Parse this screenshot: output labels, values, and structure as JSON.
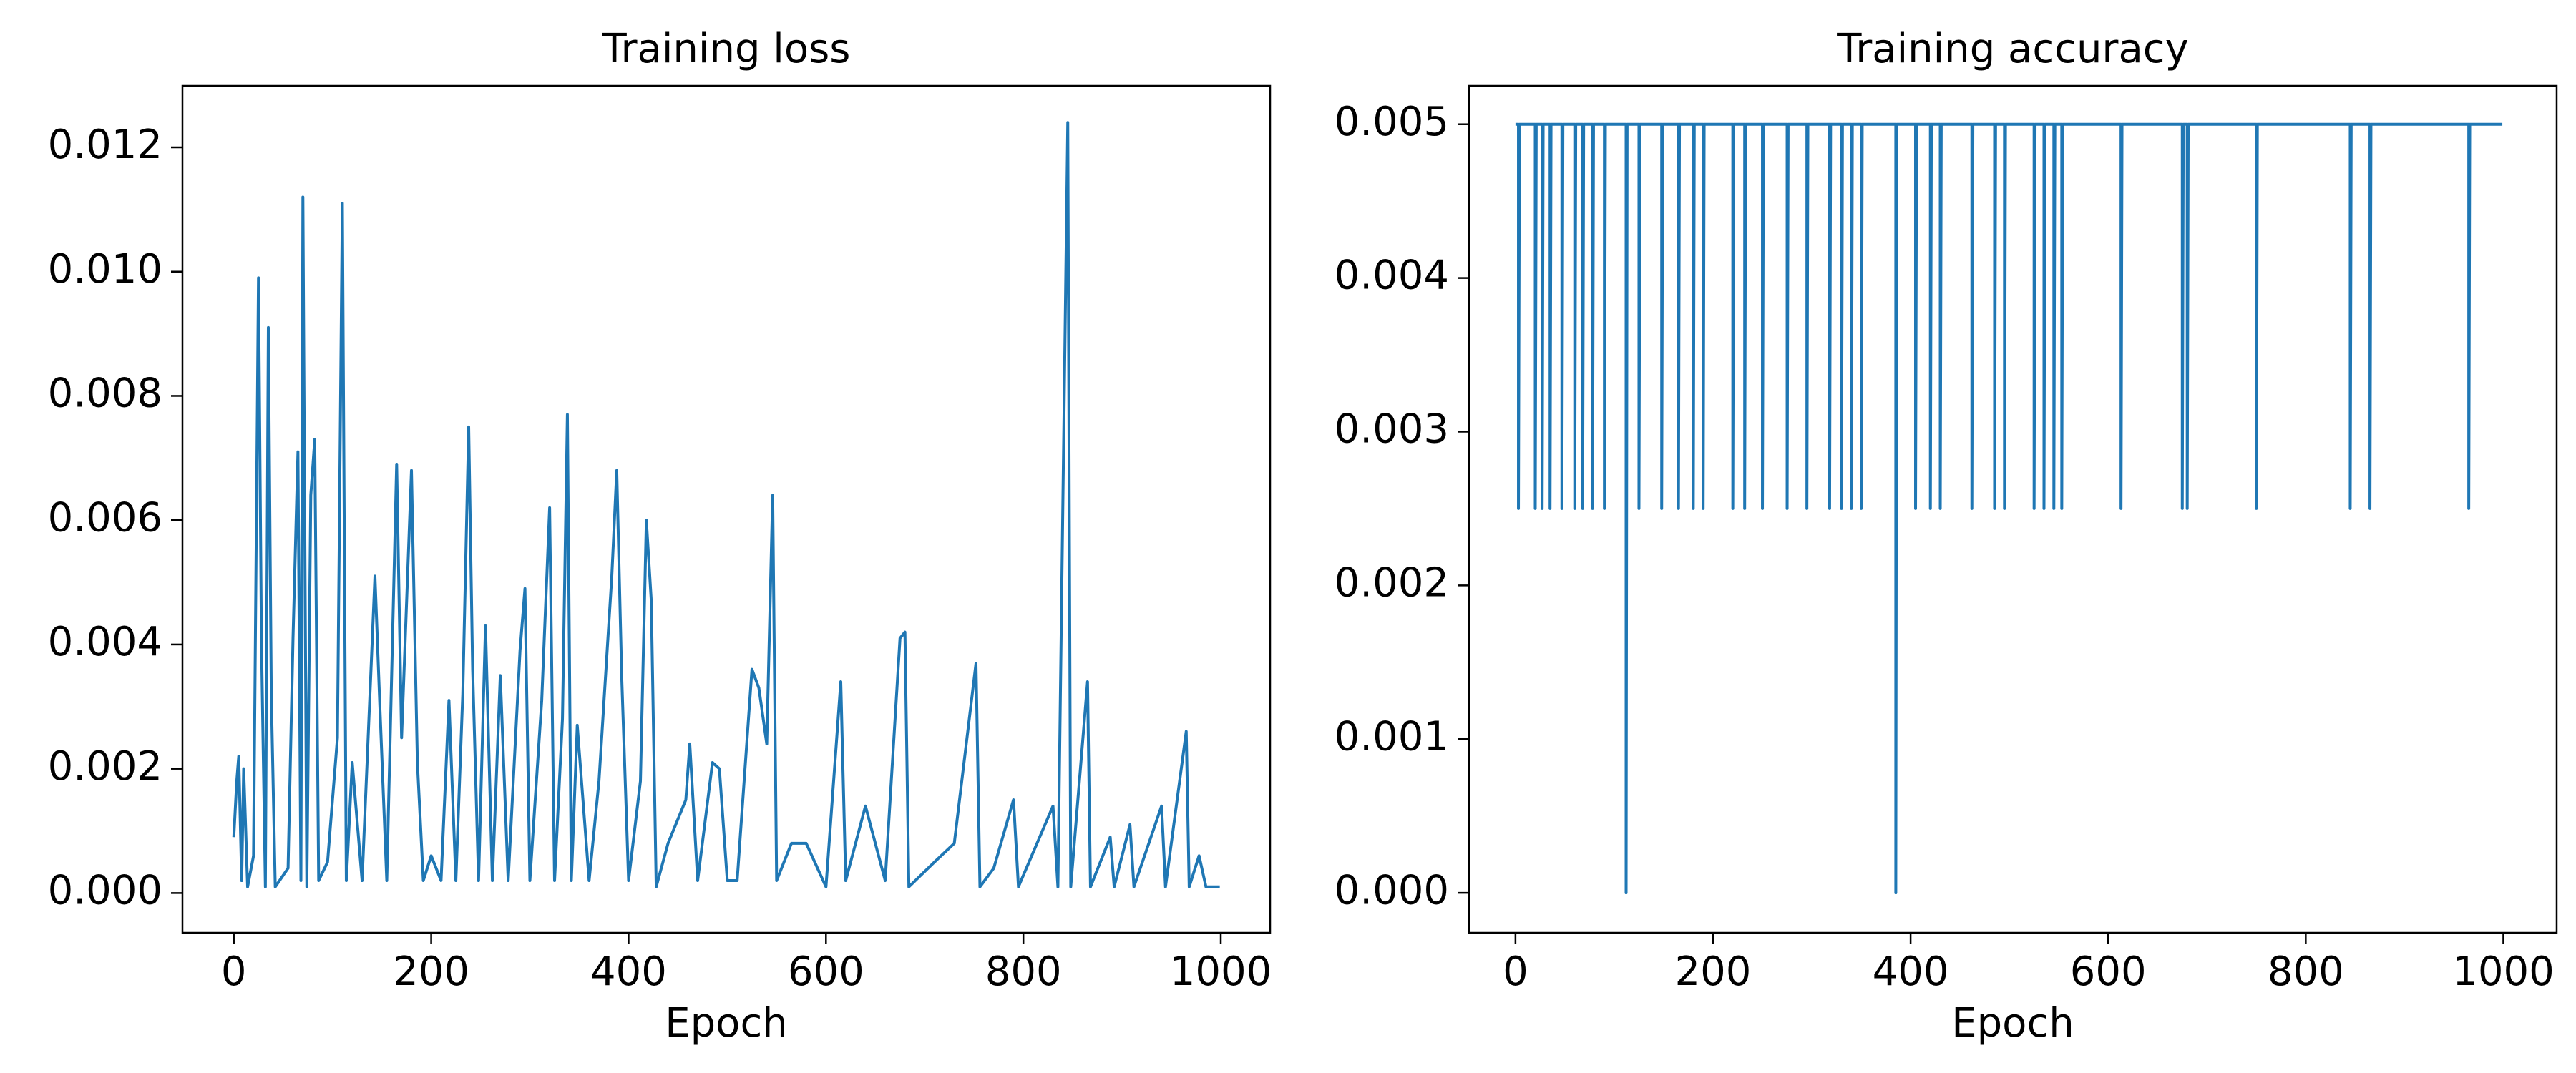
{
  "chart_data": [
    {
      "type": "line",
      "title": "Training loss",
      "xlabel": "Epoch",
      "color": "#1f77b4",
      "x": [
        0,
        3,
        5,
        8,
        10,
        14,
        20,
        25,
        28,
        32,
        35,
        38,
        42,
        55,
        60,
        65,
        68,
        70,
        74,
        78,
        82,
        86,
        95,
        105,
        110,
        114,
        120,
        130,
        143,
        148,
        155,
        165,
        170,
        180,
        186,
        192,
        200,
        210,
        218,
        225,
        232,
        238,
        242,
        248,
        255,
        262,
        270,
        278,
        290,
        295,
        300,
        312,
        320,
        325,
        333,
        338,
        342,
        348,
        360,
        370,
        383,
        388,
        393,
        400,
        412,
        418,
        423,
        428,
        440,
        458,
        462,
        470,
        485,
        492,
        500,
        510,
        525,
        532,
        540,
        546,
        550,
        565,
        580,
        600,
        615,
        620,
        640,
        660,
        675,
        680,
        684,
        710,
        730,
        752,
        756,
        770,
        790,
        795,
        830,
        835,
        845,
        848,
        865,
        868,
        888,
        892,
        908,
        912,
        940,
        944,
        965,
        968,
        978,
        985,
        999
      ],
      "values": [
        0.0009,
        0.0018,
        0.0022,
        0.0002,
        0.002,
        0.0001,
        0.0006,
        0.0099,
        0.0041,
        0.0001,
        0.0091,
        0.0032,
        0.0001,
        0.0004,
        0.0041,
        0.0071,
        0.0002,
        0.0112,
        0.0001,
        0.0064,
        0.0073,
        0.0002,
        0.0005,
        0.0025,
        0.0111,
        0.0002,
        0.0021,
        0.0002,
        0.0051,
        0.003,
        0.0002,
        0.0069,
        0.0025,
        0.0068,
        0.0021,
        0.0002,
        0.0006,
        0.0002,
        0.0031,
        0.0002,
        0.0032,
        0.0075,
        0.0036,
        0.0002,
        0.0043,
        0.0002,
        0.0035,
        0.0002,
        0.0039,
        0.0049,
        0.0002,
        0.0031,
        0.0062,
        0.0002,
        0.0028,
        0.0077,
        0.0002,
        0.0027,
        0.0002,
        0.0018,
        0.0051,
        0.0068,
        0.0035,
        0.0002,
        0.0018,
        0.006,
        0.0047,
        0.0001,
        0.0008,
        0.0015,
        0.0024,
        0.0002,
        0.0021,
        0.002,
        0.0002,
        0.0002,
        0.0036,
        0.0033,
        0.0024,
        0.0064,
        0.0002,
        0.0008,
        0.0008,
        0.0001,
        0.0034,
        0.0002,
        0.0014,
        0.0002,
        0.0041,
        0.0042,
        0.0001,
        0.0005,
        0.0008,
        0.0037,
        0.0001,
        0.0004,
        0.0015,
        0.0001,
        0.0014,
        0.0001,
        0.0124,
        0.0001,
        0.0034,
        0.0001,
        0.0009,
        0.0001,
        0.0011,
        0.0001,
        0.0014,
        0.0001,
        0.0026,
        0.0001,
        0.0006,
        0.0001,
        0.0001
      ],
      "xlim": [
        -52,
        1050
      ],
      "ylim": [
        -0.00064,
        0.01299
      ],
      "xticks": [
        0,
        200,
        400,
        600,
        800,
        1000
      ],
      "yticks": [
        {
          "value": 0,
          "label": "0.000"
        },
        {
          "value": 0.002,
          "label": "0.002"
        },
        {
          "value": 0.004,
          "label": "0.004"
        },
        {
          "value": 0.006,
          "label": "0.006"
        },
        {
          "value": 0.008,
          "label": "0.008"
        },
        {
          "value": 0.01,
          "label": "0.010"
        },
        {
          "value": 0.012,
          "label": "0.012"
        }
      ]
    },
    {
      "type": "line",
      "title": "Training accuracy",
      "xlabel": "Epoch",
      "color": "#1f77b4",
      "x": [
        0,
        3,
        3,
        4,
        20,
        20,
        21,
        27,
        27,
        28,
        35,
        35,
        36,
        47,
        47,
        48,
        60,
        60,
        61,
        68,
        68,
        69,
        78,
        78,
        79,
        90,
        90,
        91,
        112,
        112,
        113,
        125,
        125,
        126,
        148,
        148,
        149,
        165,
        165,
        166,
        180,
        180,
        181,
        190,
        190,
        191,
        220,
        220,
        221,
        232,
        232,
        233,
        250,
        250,
        251,
        275,
        275,
        276,
        295,
        295,
        296,
        318,
        318,
        319,
        330,
        330,
        331,
        340,
        340,
        341,
        350,
        350,
        351,
        385,
        385,
        386,
        405,
        405,
        406,
        420,
        420,
        421,
        430,
        430,
        431,
        462,
        462,
        463,
        485,
        485,
        486,
        495,
        495,
        496,
        525,
        525,
        526,
        535,
        535,
        536,
        545,
        545,
        546,
        553,
        553,
        554,
        613,
        613,
        614,
        675,
        675,
        676,
        680,
        680,
        681,
        750,
        750,
        751,
        845,
        845,
        846,
        865,
        865,
        866,
        965,
        965,
        966,
        999
      ],
      "values": [
        0.005,
        0.005,
        0.0025,
        0.005,
        0.005,
        0.0025,
        0.005,
        0.005,
        0.0025,
        0.005,
        0.005,
        0.0025,
        0.005,
        0.005,
        0.0025,
        0.005,
        0.005,
        0.0025,
        0.005,
        0.005,
        0.0025,
        0.005,
        0.005,
        0.0025,
        0.005,
        0.005,
        0.0025,
        0.005,
        0.005,
        0,
        0.005,
        0.005,
        0.0025,
        0.005,
        0.005,
        0.0025,
        0.005,
        0.005,
        0.0025,
        0.005,
        0.005,
        0.0025,
        0.005,
        0.005,
        0.0025,
        0.005,
        0.005,
        0.0025,
        0.005,
        0.005,
        0.0025,
        0.005,
        0.005,
        0.0025,
        0.005,
        0.005,
        0.0025,
        0.005,
        0.005,
        0.0025,
        0.005,
        0.005,
        0.0025,
        0.005,
        0.005,
        0.0025,
        0.005,
        0.005,
        0.0025,
        0.005,
        0.005,
        0.0025,
        0.005,
        0.005,
        0,
        0.005,
        0.005,
        0.0025,
        0.005,
        0.005,
        0.0025,
        0.005,
        0.005,
        0.0025,
        0.005,
        0.005,
        0.0025,
        0.005,
        0.005,
        0.0025,
        0.005,
        0.005,
        0.0025,
        0.005,
        0.005,
        0.0025,
        0.005,
        0.005,
        0.0025,
        0.005,
        0.005,
        0.0025,
        0.005,
        0.005,
        0.0025,
        0.005,
        0.005,
        0.0025,
        0.005,
        0.005,
        0.0025,
        0.005,
        0.005,
        0.0025,
        0.005,
        0.005,
        0.0025,
        0.005,
        0.005,
        0.0025,
        0.005,
        0.005,
        0.0025,
        0.005,
        0.005,
        0.0025,
        0.005,
        0.005
      ],
      "xlim": [
        -47,
        1054
      ],
      "ylim": [
        -0.00026,
        0.00525
      ],
      "xticks": [
        0,
        200,
        400,
        600,
        800,
        1000
      ],
      "yticks": [
        {
          "value": 0,
          "label": "0.000"
        },
        {
          "value": 0.001,
          "label": "0.001"
        },
        {
          "value": 0.002,
          "label": "0.002"
        },
        {
          "value": 0.003,
          "label": "0.003"
        },
        {
          "value": 0.004,
          "label": "0.004"
        },
        {
          "value": 0.005,
          "label": "0.005"
        }
      ]
    }
  ]
}
